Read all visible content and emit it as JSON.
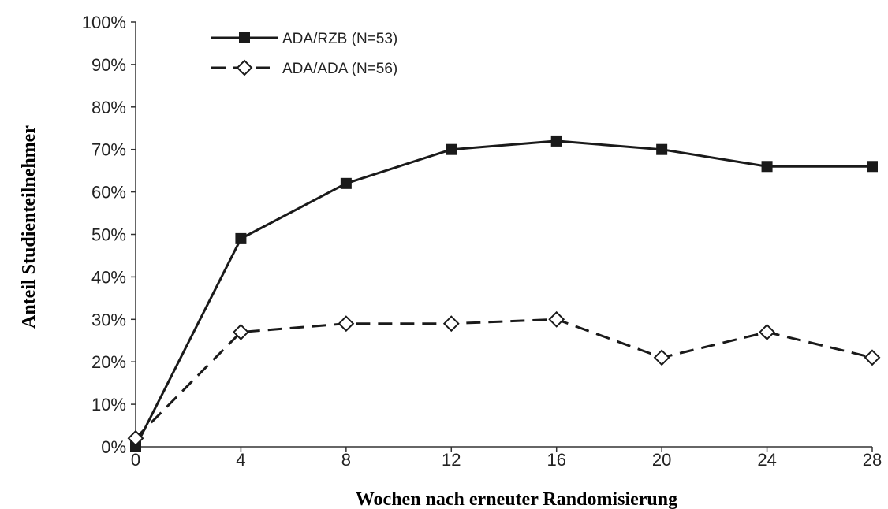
{
  "chart_data": {
    "type": "line",
    "title": "",
    "xlabel": "Wochen nach erneuter Randomisierung",
    "ylabel": "Anteil Studienteilnehmer",
    "x": [
      0,
      4,
      8,
      12,
      16,
      20,
      24,
      28
    ],
    "x_tick_labels": [
      "0",
      "4",
      "8",
      "12",
      "16",
      "20",
      "24",
      "28"
    ],
    "y_tick_labels": [
      "0%",
      "10%",
      "20%",
      "30%",
      "40%",
      "50%",
      "60%",
      "70%",
      "80%",
      "90%",
      "100%"
    ],
    "xlim": [
      0,
      28
    ],
    "ylim": [
      0,
      100
    ],
    "grid": false,
    "legend_position": "top-left",
    "series": [
      {
        "name": "ADA/RZB (N=53)",
        "values": [
          0,
          49,
          62,
          70,
          72,
          70,
          66,
          66
        ],
        "line_style": "solid",
        "marker": "filled-square",
        "color": "#1a1a1a"
      },
      {
        "name": "ADA/ADA (N=56)",
        "values": [
          2,
          27,
          29,
          29,
          30,
          21,
          27,
          21
        ],
        "line_style": "dashed",
        "marker": "open-diamond",
        "color": "#1a1a1a"
      }
    ]
  }
}
